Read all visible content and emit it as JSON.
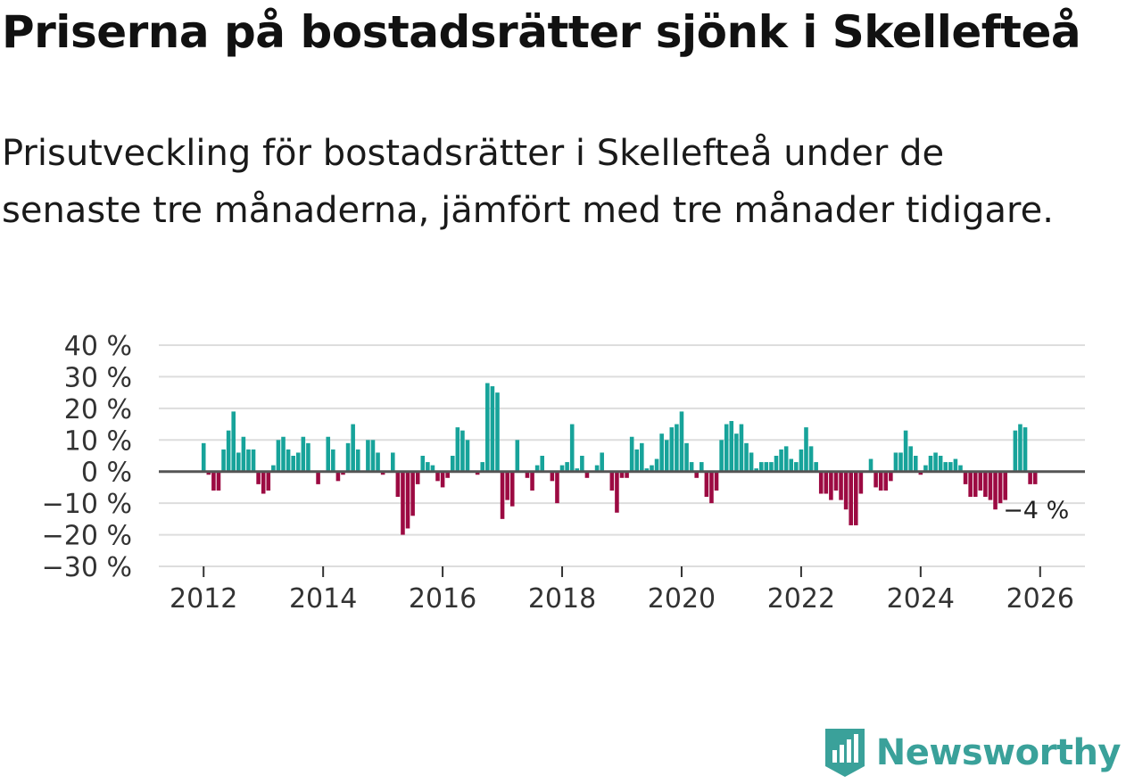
{
  "title": "Priserna på bostadsrätter sjönk i Skellefteå",
  "subtitle": "Prisutveckling för bostadsrätter i Skellefteå under de senaste tre månaderna, jämfört med tre månader tidigare.",
  "brand": {
    "name": "Newsworthy",
    "icon": "newsworthy-logo-icon",
    "color": "#3aa19a"
  },
  "colors": {
    "positive": "#17a39a",
    "negative": "#9c0a42",
    "zero_line": "#555555",
    "grid": "#dddddd"
  },
  "chart_data": {
    "type": "bar",
    "title": "Priserna på bostadsrätter sjönk i Skellefteå",
    "xlabel": "",
    "ylabel": "",
    "y_unit": "%",
    "ylim": [
      -30,
      40
    ],
    "xlim": [
      2011.25,
      2026.75
    ],
    "y_ticks": [
      -30,
      -20,
      -10,
      0,
      10,
      20,
      30,
      40
    ],
    "y_tick_labels": [
      "−30 %",
      "−20 %",
      "−10 %",
      "0 %",
      "10 %",
      "20 %",
      "30 %",
      "40 %"
    ],
    "x_ticks": [
      2012,
      2014,
      2016,
      2018,
      2020,
      2022,
      2024,
      2026
    ],
    "x_tick_labels": [
      "2012",
      "2014",
      "2016",
      "2018",
      "2020",
      "2022",
      "2024",
      "2026"
    ],
    "start": {
      "year": 2012,
      "month": 1
    },
    "frequency": "monthly",
    "grid": true,
    "annotation": {
      "text": "−4 %",
      "series_index": "last"
    },
    "values": [
      9,
      -1,
      -6,
      -6,
      7,
      13,
      19,
      6,
      11,
      7,
      7,
      -4,
      -7,
      -6,
      2,
      10,
      11,
      7,
      5,
      6,
      11,
      9,
      0,
      -4,
      0,
      11,
      7,
      -3,
      -1,
      9,
      15,
      7,
      0,
      10,
      10,
      6,
      -1,
      0,
      6,
      -8,
      -20,
      -18,
      -14,
      -4,
      5,
      3,
      2,
      -3,
      -5,
      -2,
      5,
      14,
      13,
      10,
      0,
      -1,
      3,
      28,
      27,
      25,
      -15,
      -9,
      -11,
      10,
      0,
      -2,
      -6,
      2,
      5,
      0,
      -3,
      -10,
      2,
      3,
      15,
      1,
      5,
      -2,
      0,
      2,
      6,
      0,
      -6,
      -13,
      -2,
      -2,
      11,
      7,
      9,
      1,
      2,
      4,
      12,
      10,
      14,
      15,
      19,
      9,
      3,
      -2,
      3,
      -8,
      -10,
      -6,
      10,
      15,
      16,
      12,
      15,
      9,
      6,
      1,
      3,
      3,
      3,
      5,
      7,
      8,
      4,
      3,
      7,
      14,
      8,
      3,
      -7,
      -7,
      -9,
      -6,
      -9,
      -12,
      -17,
      -17,
      -7,
      0,
      4,
      -5,
      -6,
      -6,
      -3,
      6,
      6,
      13,
      8,
      5,
      -1,
      2,
      5,
      6,
      5,
      3,
      3,
      4,
      2,
      -4,
      -8,
      -8,
      -6,
      -8,
      -9,
      -12,
      -10,
      -9,
      0,
      13,
      15,
      14,
      -4,
      -4
    ]
  }
}
